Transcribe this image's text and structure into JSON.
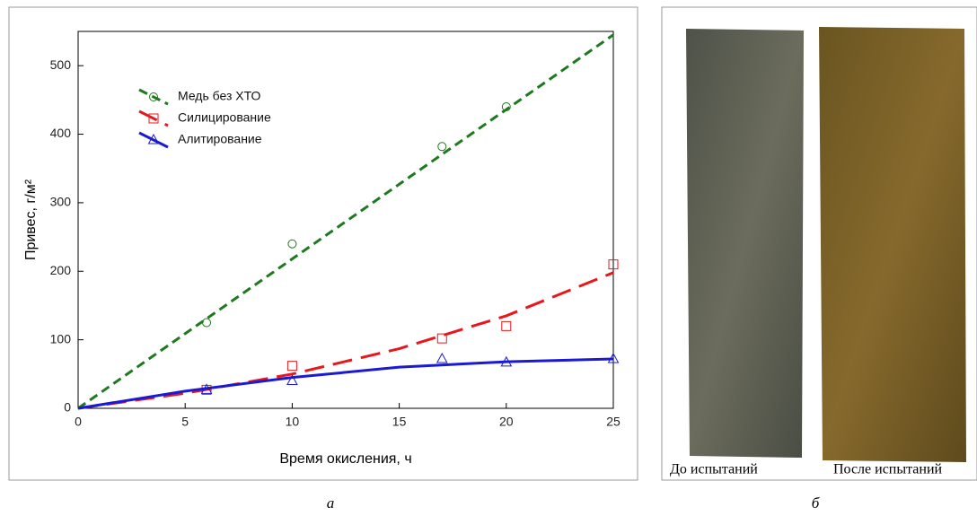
{
  "chart_data": {
    "type": "scatter",
    "x_label": "Время окисления, ч",
    "y_label": "Привес, г/м²",
    "xlim": [
      0,
      25
    ],
    "xticks": [
      0,
      5,
      10,
      15,
      20,
      25
    ],
    "ylim": [
      0,
      550
    ],
    "yticks": [
      0,
      100,
      200,
      300,
      400,
      500
    ],
    "fit_x": [
      0,
      5,
      10,
      15,
      20,
      25
    ],
    "series": [
      {
        "name": "Медь без ХТО",
        "color": "#1e7a1e",
        "marker": "circle",
        "line_style": "dashed",
        "x": [
          6,
          10,
          17,
          20
        ],
        "values": [
          125,
          240,
          382,
          440
        ],
        "fit_values": [
          0,
          109,
          218,
          327,
          436,
          545
        ]
      },
      {
        "name": "Силицирование",
        "color": "#e8171b",
        "marker": "square",
        "line_style": "long-dashed",
        "x": [
          6,
          10,
          17,
          20,
          25
        ],
        "values": [
          27,
          62,
          102,
          120,
          210
        ],
        "fit_values": [
          0,
          22,
          50,
          87,
          135,
          198
        ]
      },
      {
        "name": "Алитирование",
        "color": "#1a1ad6",
        "marker": "triangle",
        "line_style": "solid",
        "x": [
          6,
          10,
          17,
          20,
          25
        ],
        "values": [
          27,
          40,
          72,
          67,
          72
        ],
        "fit_values": [
          0,
          25,
          45,
          60,
          68,
          72
        ]
      }
    ],
    "panel_label": "а"
  },
  "photo": {
    "captions": [
      "До испытаний",
      "После испытаний"
    ],
    "panel_label": "б"
  }
}
